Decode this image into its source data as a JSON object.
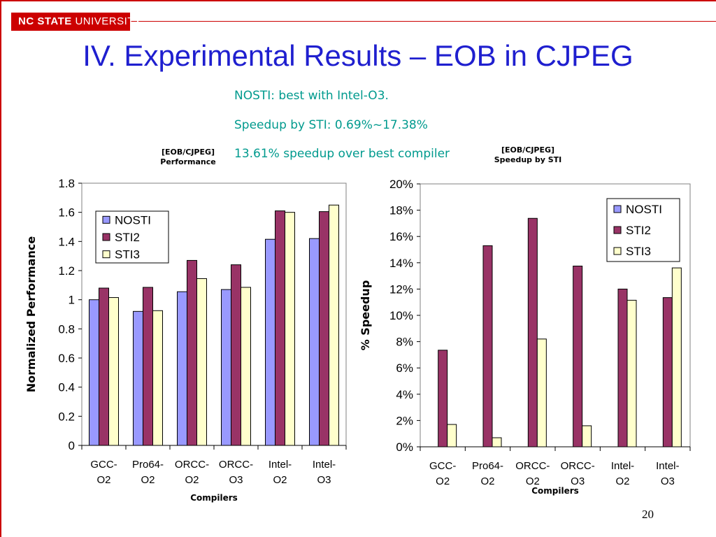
{
  "header": {
    "logo_text_bold": "NC STATE",
    "logo_text": " UNIVERSITY",
    "title": "IV. Experimental Results – EOB in CJPEG"
  },
  "notes": [
    "NOSTI: best with Intel-O3.",
    "Speedup by STI: 0.69%~17.38%",
    "13.61% speedup over best compiler"
  ],
  "colors": {
    "NOSTI": "#9999ff",
    "STI2": "#993366",
    "STI3": "#ffffcc",
    "title": "#1f1fcf",
    "notes": "#009a8e",
    "brand": "#cc0000"
  },
  "page_number": "20",
  "chart_data": [
    {
      "type": "bar",
      "header_line1": "[EOB/CJPEG]",
      "header_line2": "Performance",
      "categories": [
        "GCC-\nO2",
        "Pro64-\nO2",
        "ORCC-\nO2",
        "ORCC-\nO3",
        "Intel-\nO2",
        "Intel-\nO3"
      ],
      "series": [
        {
          "name": "NOSTI",
          "values": [
            1.0,
            0.92,
            1.055,
            1.07,
            1.415,
            1.42
          ]
        },
        {
          "name": "STI2",
          "values": [
            1.08,
            1.085,
            1.27,
            1.24,
            1.61,
            1.605
          ]
        },
        {
          "name": "STI3",
          "values": [
            1.015,
            0.925,
            1.145,
            1.085,
            1.6,
            1.65
          ]
        }
      ],
      "ylabel": "Normalized Performance",
      "xlabel": "Compilers",
      "ylim": [
        0,
        1.8
      ],
      "yticks": [
        "0",
        "0.2",
        "0.4",
        "0.6",
        "0.8",
        "1",
        "1.2",
        "1.4",
        "1.6",
        "1.8"
      ],
      "grid": false,
      "legend": "top-left"
    },
    {
      "type": "bar",
      "header_line1": "[EOB/CJPEG]",
      "header_line2": "Speedup by STI",
      "categories": [
        "GCC-\nO2",
        "Pro64-\nO2",
        "ORCC-\nO2",
        "ORCC-\nO3",
        "Intel-\nO2",
        "Intel-\nO3"
      ],
      "series": [
        {
          "name": "NOSTI",
          "values": [
            0,
            0,
            0,
            0,
            0,
            0
          ]
        },
        {
          "name": "STI2",
          "values": [
            7.35,
            15.3,
            17.38,
            13.75,
            12.0,
            11.35
          ]
        },
        {
          "name": "STI3",
          "values": [
            1.7,
            0.69,
            8.2,
            1.6,
            11.15,
            13.61
          ]
        }
      ],
      "ylabel": "% Speedup",
      "xlabel": "Compilers",
      "ylim": [
        0,
        20
      ],
      "yticks": [
        "0%",
        "2%",
        "4%",
        "6%",
        "8%",
        "10%",
        "12%",
        "14%",
        "16%",
        "18%",
        "20%"
      ],
      "grid": false,
      "legend": "top-right"
    }
  ]
}
